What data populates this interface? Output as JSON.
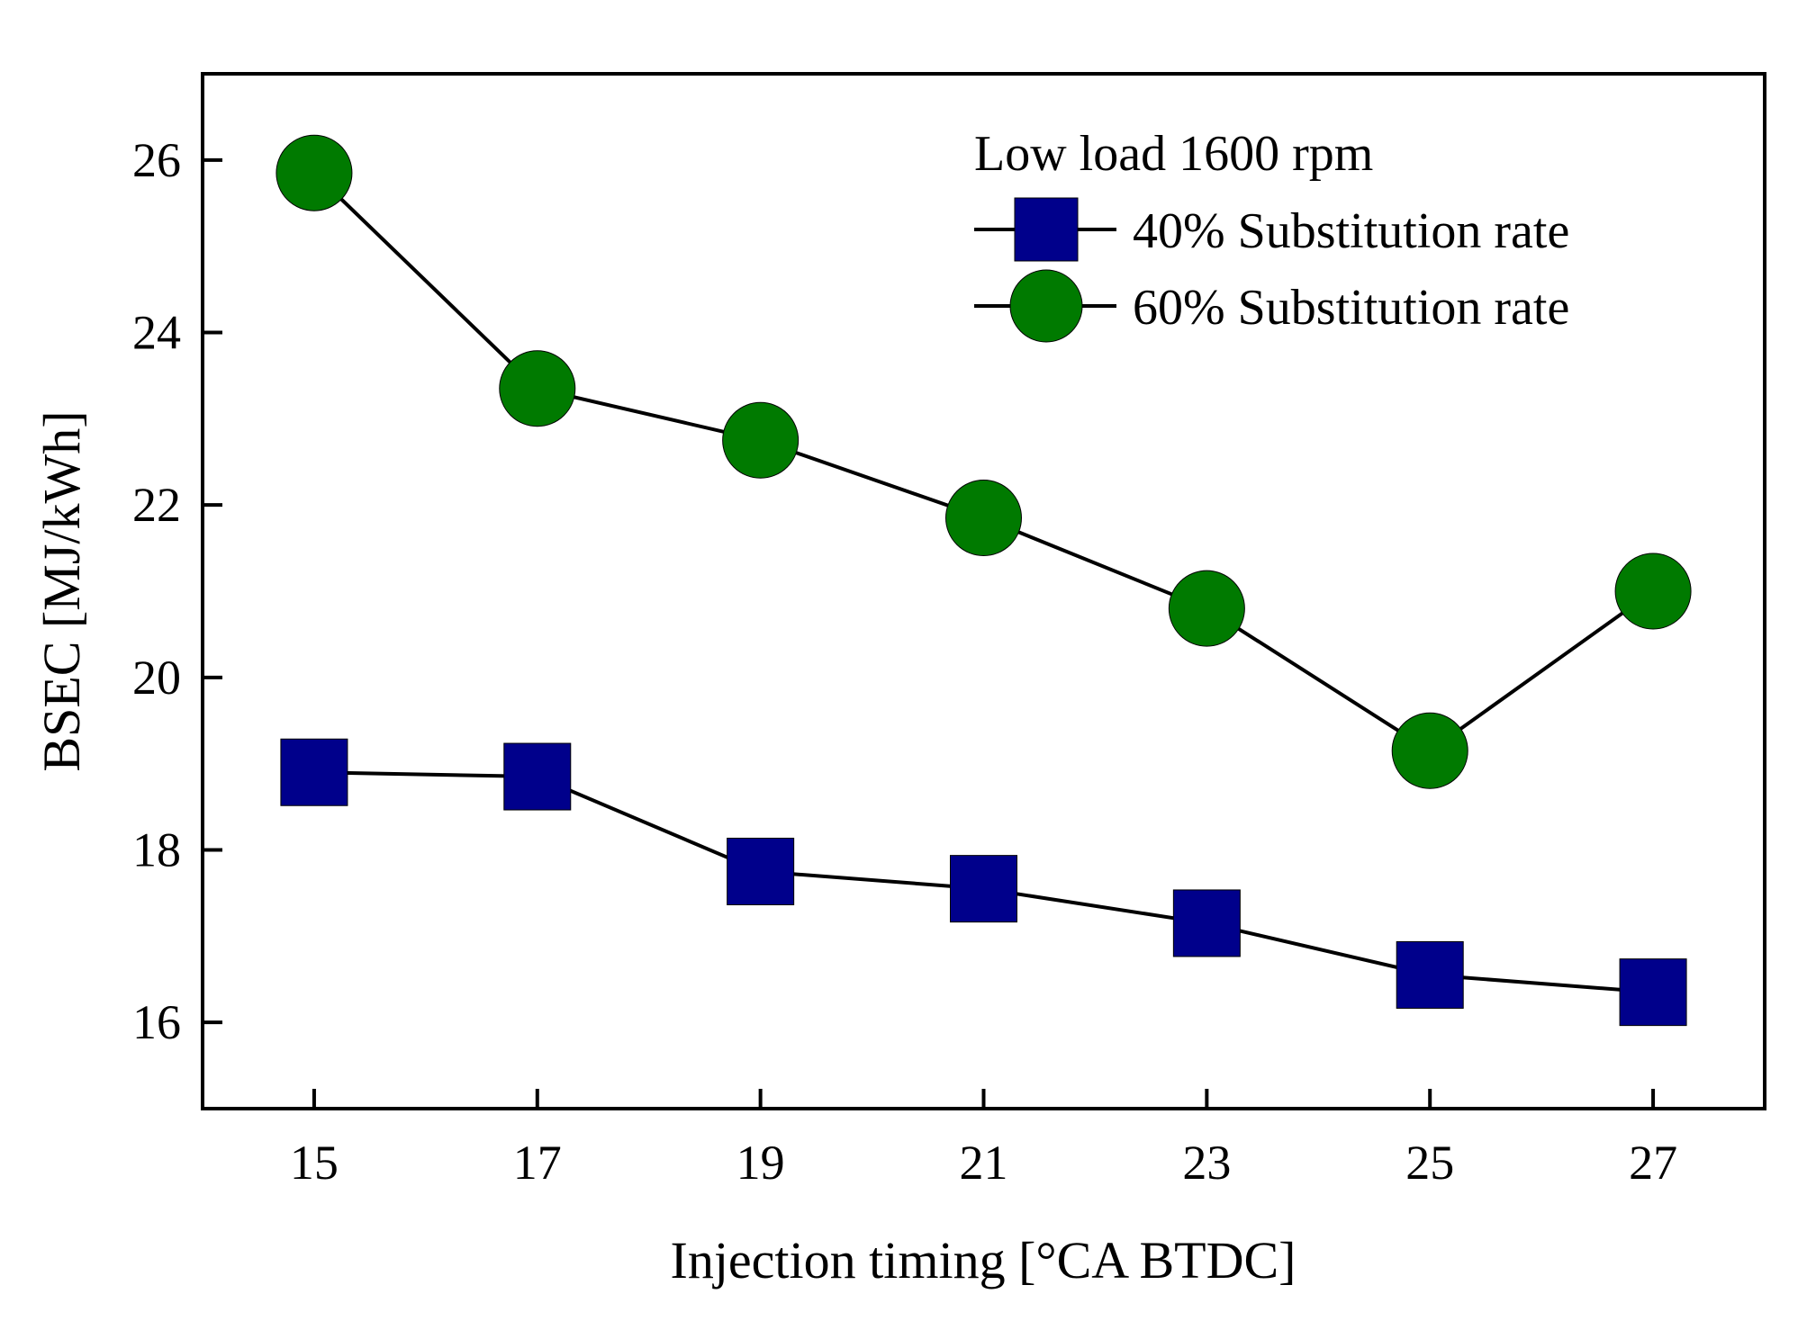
{
  "chart_data": {
    "type": "line",
    "title": "",
    "xlabel": "Injection timing [°CA BTDC]",
    "ylabel": "BSEC [MJ/kWh]",
    "xlim": [
      14,
      28
    ],
    "ylim": [
      15,
      27
    ],
    "x_ticks": [
      15,
      17,
      19,
      21,
      23,
      25,
      27
    ],
    "y_ticks": [
      16,
      18,
      20,
      22,
      24,
      26
    ],
    "x": [
      15,
      17,
      19,
      21,
      23,
      25,
      27
    ],
    "legend_title": "Low load 1600 rpm",
    "legend_position": "top-right",
    "grid": false,
    "line_color": "#000000",
    "series": [
      {
        "name": "40% Substitution rate",
        "marker": "square",
        "color": "#00008b",
        "values": [
          18.9,
          18.85,
          17.75,
          17.55,
          17.15,
          16.55,
          16.35
        ]
      },
      {
        "name": "60% Substitution rate",
        "marker": "circle",
        "color": "#007a00",
        "values": [
          25.85,
          23.35,
          22.75,
          21.85,
          20.8,
          19.15,
          21.0
        ]
      }
    ]
  }
}
